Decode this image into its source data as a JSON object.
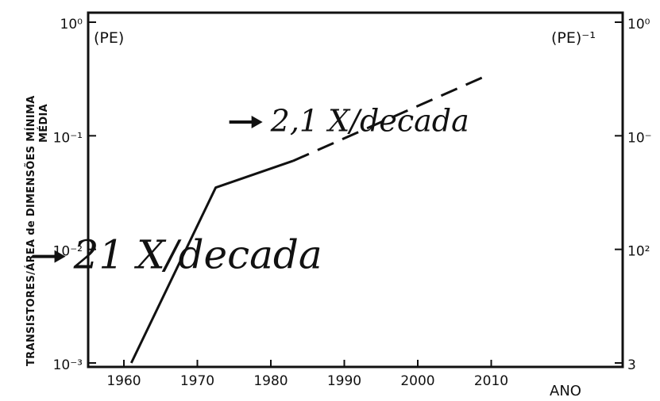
{
  "chart_data": {
    "type": "line",
    "title": "",
    "xlabel": "ANO",
    "ylabel_line1": "TRANSISTORES/ÁREA de DIMENSÕES MÍNIMA",
    "ylabel_line2": "MÉDIA",
    "yscale": "log",
    "xlim": [
      1955,
      2030
    ],
    "ylim": [
      0.001,
      1
    ],
    "x_ticks": [
      "1960",
      "1970",
      "1980",
      "1990",
      "2000",
      "2010"
    ],
    "y_ticks_left": [
      "10⁰",
      "10⁻¹",
      "10⁻²",
      "10⁻³"
    ],
    "y_ticks_right": [
      "10⁰",
      "10⁻",
      "10²",
      "3"
    ],
    "left_corner_label": "(PE)",
    "right_corner_label": "(PE)⁻¹",
    "grid": false,
    "series": [
      {
        "style": "solid",
        "x": [
          1961,
          1972.5,
          1983
        ],
        "y": [
          0.001,
          0.035,
          0.06
        ]
      },
      {
        "style": "dashed",
        "x": [
          1983,
          2009
        ],
        "y": [
          0.06,
          0.33
        ]
      }
    ],
    "annotations": [
      {
        "text": "2,1 X/decada",
        "x": 2007,
        "y": 0.11
      },
      {
        "text": "21 X/decada",
        "x": 1987,
        "y": 0.0068
      }
    ]
  }
}
